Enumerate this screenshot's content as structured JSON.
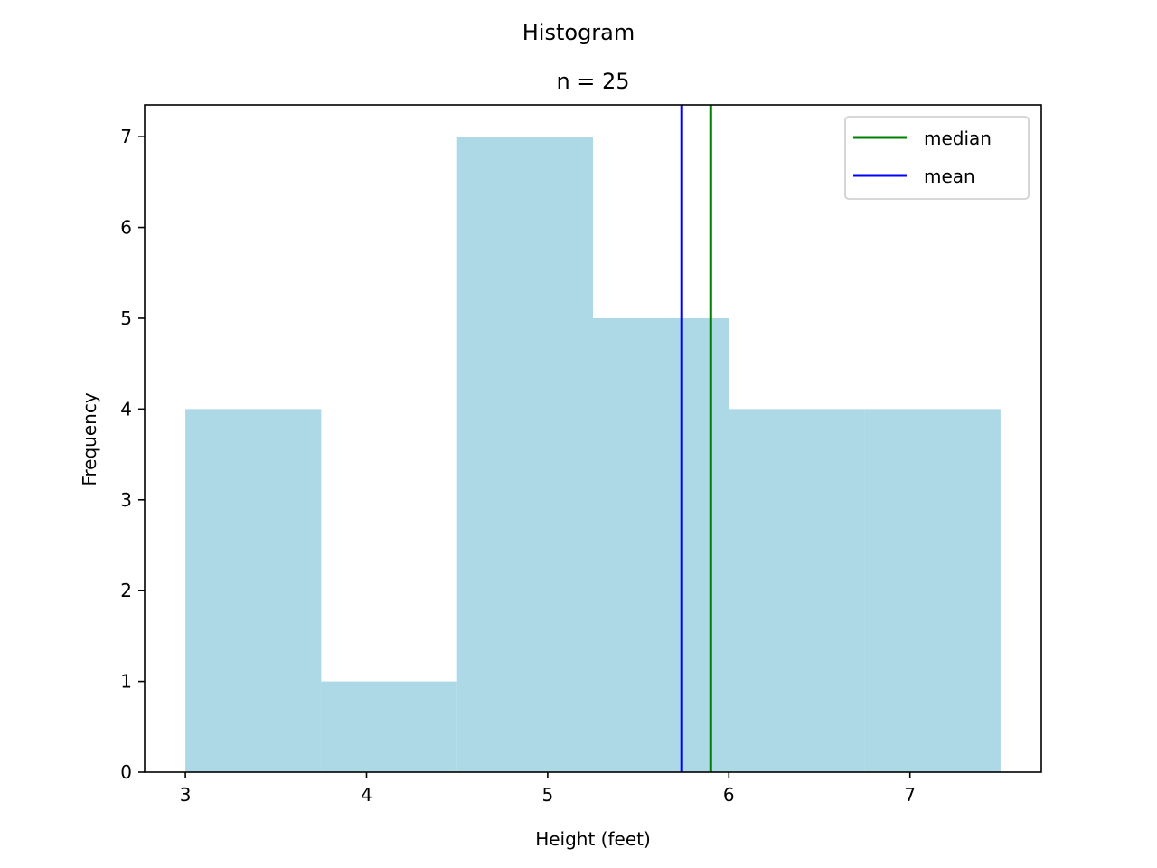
{
  "chart_data": {
    "type": "bar",
    "title": "Histogram",
    "subtitle": "n = 25",
    "xlabel": "Height (feet)",
    "ylabel": "Frequency",
    "xlim": [
      2.775,
      7.725
    ],
    "ylim": [
      0,
      7.35
    ],
    "x_ticks": [
      3,
      4,
      5,
      6,
      7
    ],
    "y_ticks": [
      0,
      1,
      2,
      3,
      4,
      5,
      6,
      7
    ],
    "bins": [
      {
        "start": 3.0,
        "end": 3.75,
        "value": 4
      },
      {
        "start": 3.75,
        "end": 4.5,
        "value": 1
      },
      {
        "start": 4.5,
        "end": 5.25,
        "value": 7
      },
      {
        "start": 5.25,
        "end": 6.0,
        "value": 5
      },
      {
        "start": 6.0,
        "end": 6.75,
        "value": 4
      },
      {
        "start": 6.75,
        "end": 7.5,
        "value": 4
      }
    ],
    "bar_color": "#add8e6",
    "vlines": [
      {
        "name": "median",
        "x": 5.9,
        "color": "#008000"
      },
      {
        "name": "mean",
        "x": 5.74,
        "color": "#0000ff"
      }
    ],
    "legend": {
      "position": "top-right",
      "entries": [
        {
          "label": "median",
          "color": "#008000"
        },
        {
          "label": "mean",
          "color": "#0000ff"
        }
      ]
    },
    "grid": false
  }
}
